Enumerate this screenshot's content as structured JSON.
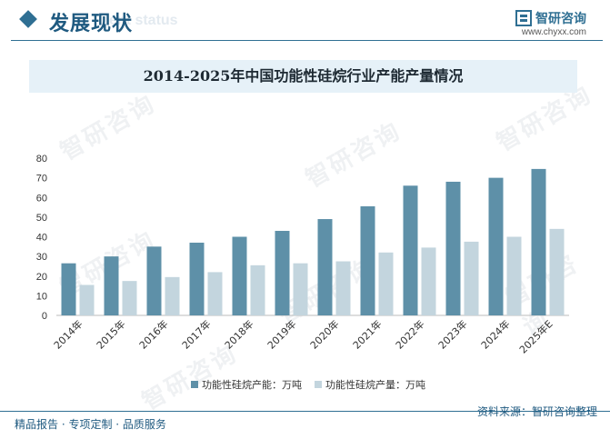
{
  "header": {
    "section_title": "发展现状",
    "section_subtitle": "ent status",
    "brand_name": "智研咨询",
    "brand_url": "www.chyxx.com",
    "accent_color": "#2f6f93"
  },
  "watermark": {
    "text": "智研咨询"
  },
  "footer": {
    "left_text": "精品报告 · 专项定制 · 品质服务",
    "source_text": "资料来源：智研咨询整理"
  },
  "chart_data": {
    "type": "bar",
    "title": "2014-2025年中国功能性硅烷行业产能产量情况",
    "categories": [
      "2014年",
      "2015年",
      "2016年",
      "2017年",
      "2018年",
      "2019年",
      "2020年",
      "2021年",
      "2022年",
      "2023年",
      "2024年",
      "2025年E"
    ],
    "series": [
      {
        "name": "功能性硅烷产能：万吨",
        "color": "#5e90a8",
        "values": [
          26.5,
          30,
          35,
          37,
          40,
          43,
          49,
          55.5,
          66,
          68,
          70,
          74.5
        ]
      },
      {
        "name": "功能性硅烷产量：万吨",
        "color": "#c3d5de",
        "values": [
          15.5,
          17.5,
          19.5,
          22,
          25.5,
          26.5,
          27.5,
          32,
          34.5,
          37.5,
          40,
          44
        ]
      }
    ],
    "y_ticks": [
      "0",
      "10",
      "20",
      "30",
      "40",
      "50",
      "60",
      "70",
      "80"
    ],
    "ylim": [
      0,
      80
    ],
    "grid": false,
    "legend_position": "bottom"
  }
}
